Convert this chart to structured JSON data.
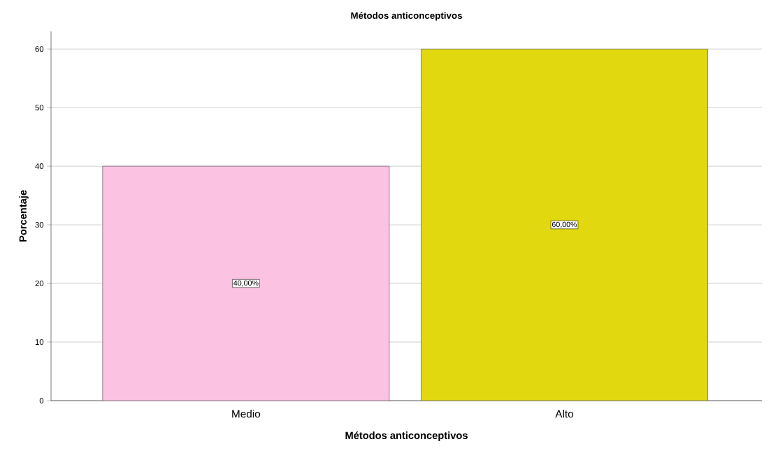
{
  "chart_data": {
    "type": "bar",
    "title": "Métodos anticonceptivos",
    "xlabel": "Métodos anticonceptivos",
    "ylabel": "Porcentaje",
    "categories": [
      "Medio",
      "Alto"
    ],
    "values": [
      40,
      60
    ],
    "colors": [
      "#fcc2e2",
      "#e1d80f"
    ],
    "value_labels": [
      "40,00%",
      "60,00%"
    ],
    "ylim": [
      0,
      63
    ],
    "yticks": [
      0,
      10,
      20,
      30,
      40,
      50,
      60
    ],
    "grid": "y"
  }
}
